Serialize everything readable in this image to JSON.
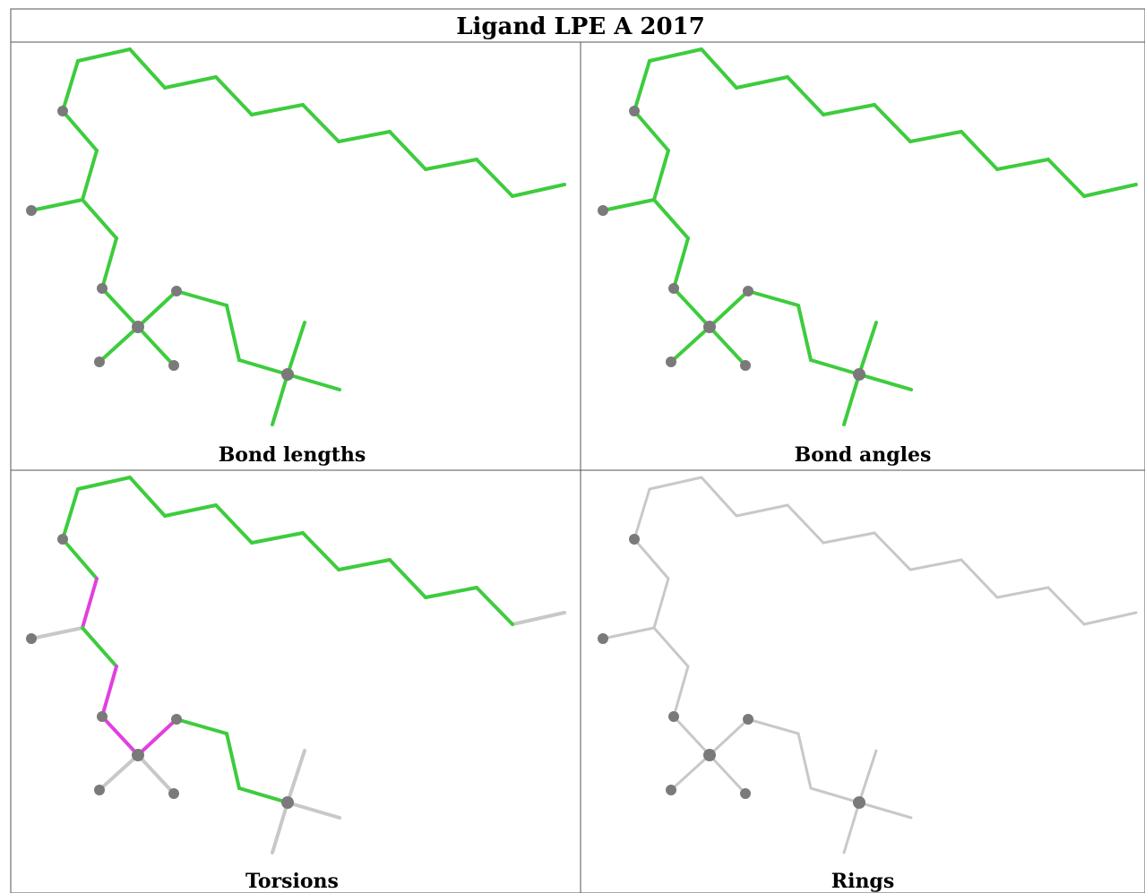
{
  "header": {
    "title": "Ligand LPE A 2017"
  },
  "panels": [
    {
      "caption": "Bond lengths"
    },
    {
      "caption": "Bond angles"
    },
    {
      "caption": "Torsions"
    },
    {
      "caption": "Rings"
    }
  ]
}
